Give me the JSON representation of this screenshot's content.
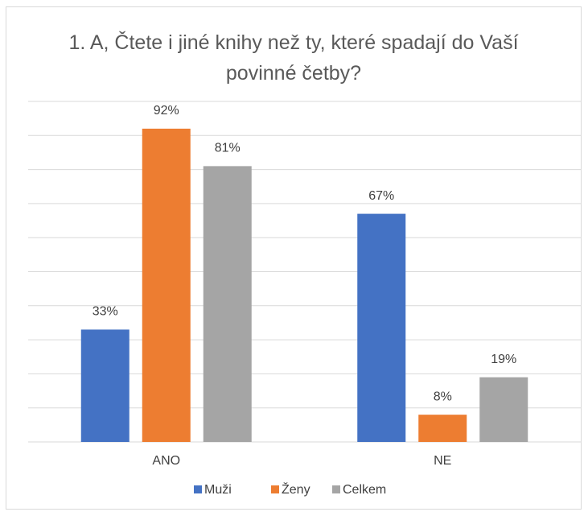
{
  "chart_data": {
    "type": "bar",
    "title": "1. A, Čtete i jiné knihy než ty, které spadají do Vaší povinné četby?",
    "categories": [
      "ANO",
      "NE"
    ],
    "series": [
      {
        "name": "Muži",
        "color": "#4472c4",
        "values": [
          33,
          67
        ],
        "value_labels": [
          "33%",
          "67%"
        ]
      },
      {
        "name": "Ženy",
        "color": "#ed7d31",
        "values": [
          92,
          8
        ],
        "value_labels": [
          "92%",
          "8%"
        ]
      },
      {
        "name": "Celkem",
        "color": "#a5a5a5",
        "values": [
          81,
          19
        ],
        "value_labels": [
          "81%",
          "19%"
        ]
      }
    ],
    "ylim": [
      0,
      100
    ],
    "yticks": [
      0,
      10,
      20,
      30,
      40,
      50,
      60,
      70,
      80,
      90,
      100
    ],
    "grid": true,
    "legend": "bottom"
  }
}
